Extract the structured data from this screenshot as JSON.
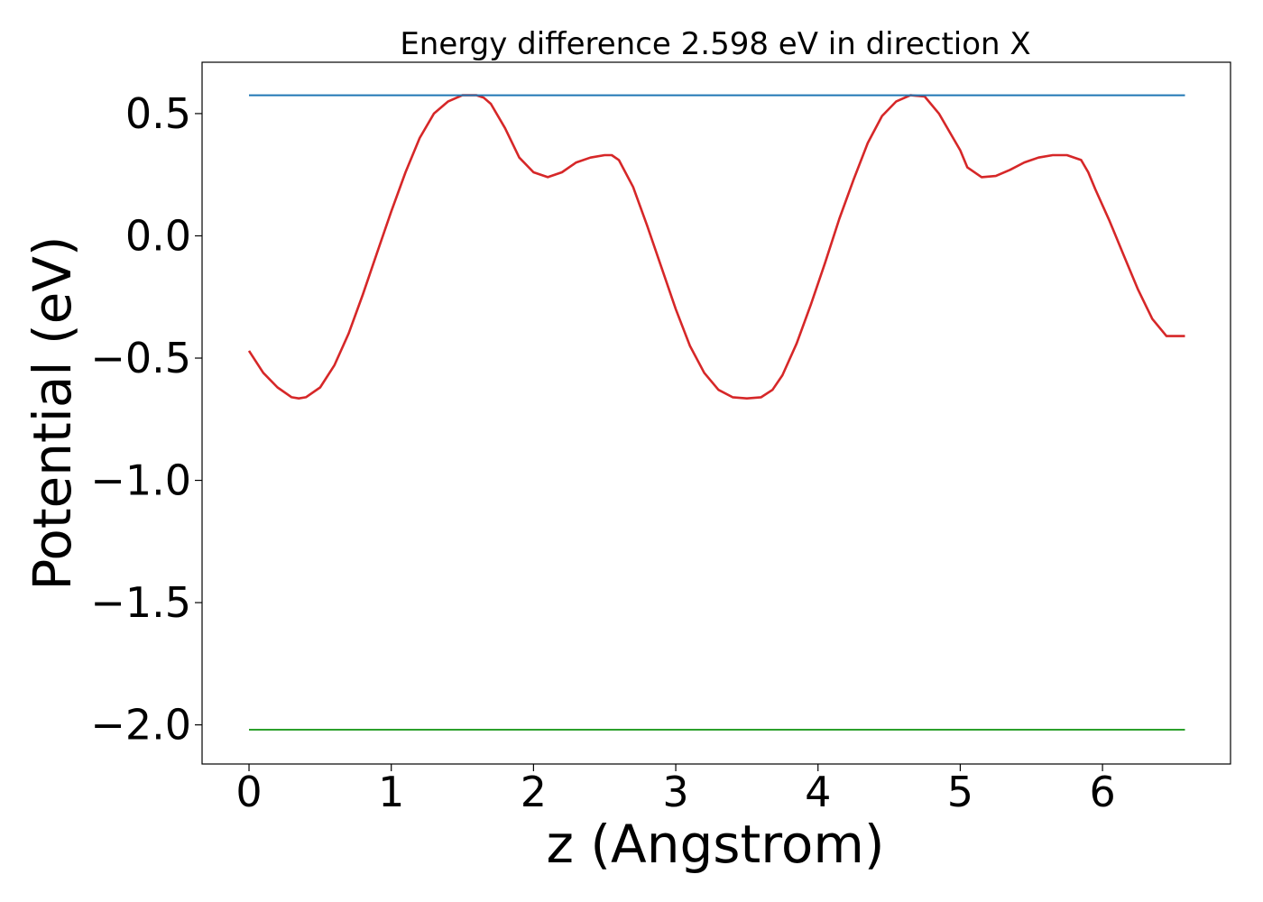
{
  "chart_data": {
    "type": "line",
    "title": "Energy difference 2.598 eV in direction X",
    "xlabel": "z (Angstrom)",
    "ylabel": "Potential (eV)",
    "xlim": [
      -0.33,
      6.9
    ],
    "ylim": [
      -2.16,
      0.71
    ],
    "xticks": [
      0,
      1,
      2,
      3,
      4,
      5,
      6
    ],
    "yticks": [
      0.5,
      0.0,
      -0.5,
      -1.0,
      -1.5,
      -2.0
    ],
    "xtick_labels": [
      "0",
      "1",
      "2",
      "3",
      "4",
      "5",
      "6"
    ],
    "ytick_labels": [
      "0.5",
      "0.0",
      "−0.5",
      "−1.0",
      "−1.5",
      "−2.0"
    ],
    "grid": false,
    "legend": "none",
    "series": [
      {
        "color": "#d62728",
        "x": [
          0.0,
          0.1,
          0.2,
          0.3,
          0.35,
          0.4,
          0.5,
          0.6,
          0.7,
          0.8,
          0.9,
          1.0,
          1.1,
          1.2,
          1.3,
          1.4,
          1.5,
          1.6,
          1.65,
          1.7,
          1.8,
          1.9,
          2.0,
          2.1,
          2.2,
          2.3,
          2.4,
          2.5,
          2.55,
          2.6,
          2.7,
          2.8,
          2.9,
          3.0,
          3.1,
          3.2,
          3.3,
          3.4,
          3.5,
          3.6,
          3.68,
          3.75,
          3.85,
          3.95,
          4.05,
          4.15,
          4.25,
          4.35,
          4.45,
          4.55,
          4.65,
          4.75,
          4.85,
          4.95,
          5.0,
          5.05,
          5.15,
          5.25,
          5.35,
          5.45,
          5.55,
          5.65,
          5.75,
          5.85,
          5.9,
          5.95,
          6.05,
          6.15,
          6.25,
          6.35,
          6.45,
          6.58
        ],
        "y": [
          -0.47,
          -0.56,
          -0.62,
          -0.66,
          -0.665,
          -0.66,
          -0.62,
          -0.53,
          -0.4,
          -0.24,
          -0.07,
          0.1,
          0.26,
          0.4,
          0.5,
          0.55,
          0.575,
          0.575,
          0.565,
          0.54,
          0.44,
          0.32,
          0.26,
          0.24,
          0.26,
          0.3,
          0.32,
          0.33,
          0.33,
          0.31,
          0.2,
          0.04,
          -0.13,
          -0.3,
          -0.45,
          -0.56,
          -0.63,
          -0.66,
          -0.665,
          -0.66,
          -0.63,
          -0.57,
          -0.44,
          -0.28,
          -0.11,
          0.07,
          0.23,
          0.38,
          0.49,
          0.55,
          0.575,
          0.57,
          0.5,
          0.4,
          0.35,
          0.28,
          0.24,
          0.245,
          0.27,
          0.3,
          0.32,
          0.33,
          0.33,
          0.31,
          0.26,
          0.19,
          0.06,
          -0.08,
          -0.22,
          -0.34,
          -0.41,
          -0.41
        ]
      },
      {
        "color": "#1f77b4",
        "x": [
          0.0,
          6.58
        ],
        "y": [
          0.575,
          0.575
        ]
      },
      {
        "color": "#2ca02c",
        "x": [
          0.0,
          6.58
        ],
        "y": [
          -2.02,
          -2.02
        ]
      }
    ]
  }
}
